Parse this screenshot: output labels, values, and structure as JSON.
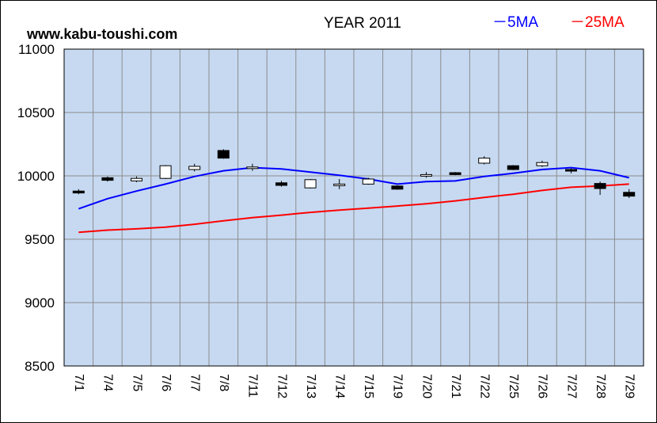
{
  "header": {
    "site": "www.kabu-toushi.com",
    "title": "YEAR 2011",
    "legend_5ma": "－5MA",
    "legend_25ma": "－25MA"
  },
  "colors": {
    "plot_bg": "#c6d9f1",
    "grid": "#8c8c8c",
    "ma5": "#0000ff",
    "ma25": "#ff0000",
    "candle_up": "#ffffff",
    "candle_down": "#000000"
  },
  "chart_data": {
    "type": "candlestick",
    "title": "YEAR 2011",
    "xlabel": "",
    "ylabel": "",
    "ylim": [
      8500,
      11000
    ],
    "yticks": [
      8500,
      9000,
      9500,
      10000,
      10500,
      11000
    ],
    "grid": true,
    "legend_position": "top-right",
    "categories": [
      "7/1",
      "7/4",
      "7/5",
      "7/6",
      "7/7",
      "7/8",
      "7/11",
      "7/12",
      "7/13",
      "7/14",
      "7/15",
      "7/19",
      "7/20",
      "7/21",
      "7/22",
      "7/25",
      "7/26",
      "7/27",
      "7/28",
      "7/29"
    ],
    "candles": [
      {
        "open": 9880,
        "high": 9895,
        "low": 9855,
        "close": 9865
      },
      {
        "open": 9985,
        "high": 9995,
        "low": 9955,
        "close": 9965
      },
      {
        "open": 9960,
        "high": 9995,
        "low": 9950,
        "close": 9980
      },
      {
        "open": 9980,
        "high": 10085,
        "low": 9975,
        "close": 10080
      },
      {
        "open": 10050,
        "high": 10095,
        "low": 10035,
        "close": 10075
      },
      {
        "open": 10200,
        "high": 10210,
        "low": 10135,
        "close": 10140
      },
      {
        "open": 10065,
        "high": 10095,
        "low": 10040,
        "close": 10070
      },
      {
        "open": 9945,
        "high": 9960,
        "low": 9915,
        "close": 9925
      },
      {
        "open": 9905,
        "high": 9975,
        "low": 9900,
        "close": 9970
      },
      {
        "open": 9935,
        "high": 9975,
        "low": 9895,
        "close": 9935
      },
      {
        "open": 9935,
        "high": 9985,
        "low": 9930,
        "close": 9975
      },
      {
        "open": 9920,
        "high": 9925,
        "low": 9890,
        "close": 9895
      },
      {
        "open": 10000,
        "high": 10030,
        "low": 9985,
        "close": 10010
      },
      {
        "open": 10025,
        "high": 10030,
        "low": 10005,
        "close": 10010
      },
      {
        "open": 10100,
        "high": 10155,
        "low": 10090,
        "close": 10140
      },
      {
        "open": 10080,
        "high": 10085,
        "low": 10045,
        "close": 10050
      },
      {
        "open": 10080,
        "high": 10120,
        "low": 10070,
        "close": 10105
      },
      {
        "open": 10050,
        "high": 10060,
        "low": 10020,
        "close": 10040
      },
      {
        "open": 9940,
        "high": 9955,
        "low": 9850,
        "close": 9900
      },
      {
        "open": 9870,
        "high": 9895,
        "low": 9825,
        "close": 9840
      }
    ],
    "series": [
      {
        "name": "5MA",
        "color": "#0000ff",
        "values": [
          9740,
          9820,
          9880,
          9935,
          9995,
          10040,
          10065,
          10055,
          10030,
          10005,
          9975,
          9935,
          9955,
          9960,
          9995,
          10020,
          10050,
          10065,
          10040,
          9985
        ]
      },
      {
        "name": "25MA",
        "color": "#ff0000",
        "values": [
          9555,
          9572,
          9582,
          9595,
          9618,
          9645,
          9670,
          9690,
          9712,
          9730,
          9745,
          9762,
          9780,
          9802,
          9830,
          9855,
          9885,
          9910,
          9920,
          9935
        ]
      }
    ]
  }
}
